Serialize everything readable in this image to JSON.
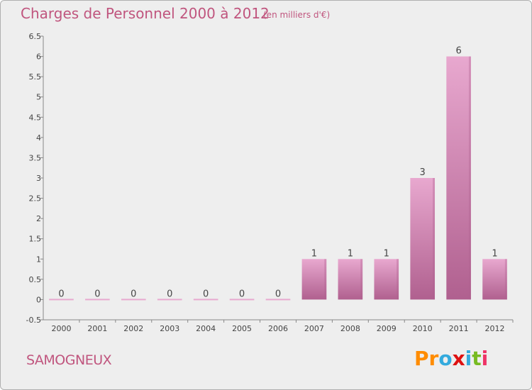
{
  "header": {
    "title": "Charges de Personnel 2000 à 2012",
    "unit": "(en milliers d'€)"
  },
  "footer": {
    "commune": "SAMOGNEUX",
    "logo": [
      "P",
      "r",
      "o",
      "x",
      "i",
      "t",
      "i"
    ],
    "logo_colors": [
      "#ff8c00",
      "#ff8c00",
      "#33aadd",
      "#dd1111",
      "#33aadd",
      "#77bb22",
      "#ee3366"
    ]
  },
  "chart_data": {
    "type": "bar",
    "title": "Charges de Personnel 2000 à 2012",
    "subtitle": "(en milliers d'€)",
    "categories": [
      "2000",
      "2001",
      "2002",
      "2003",
      "2004",
      "2005",
      "2006",
      "2007",
      "2008",
      "2009",
      "2010",
      "2011",
      "2012"
    ],
    "values": [
      0,
      0,
      0,
      0,
      0,
      0,
      0,
      1,
      1,
      1,
      3,
      6,
      1
    ],
    "data_labels": [
      "0",
      "0",
      "0",
      "0",
      "0",
      "0",
      "0",
      "1",
      "1",
      "1",
      "3",
      "6",
      "1"
    ],
    "y_ticks": [
      "-0.5",
      "0",
      "0.5",
      "1",
      "1.5",
      "2",
      "2.5",
      "3",
      "3.5",
      "4",
      "4.5",
      "5",
      "5.5",
      "6",
      "6.5"
    ],
    "ylim": [
      -0.5,
      6.5
    ],
    "xlabel": "",
    "ylabel": "",
    "grid": false,
    "colors": {
      "bar_top": "#e8a8cf",
      "bar_bottom": "#b0608f",
      "axis": "#888888",
      "accent": "#c0557e"
    }
  }
}
